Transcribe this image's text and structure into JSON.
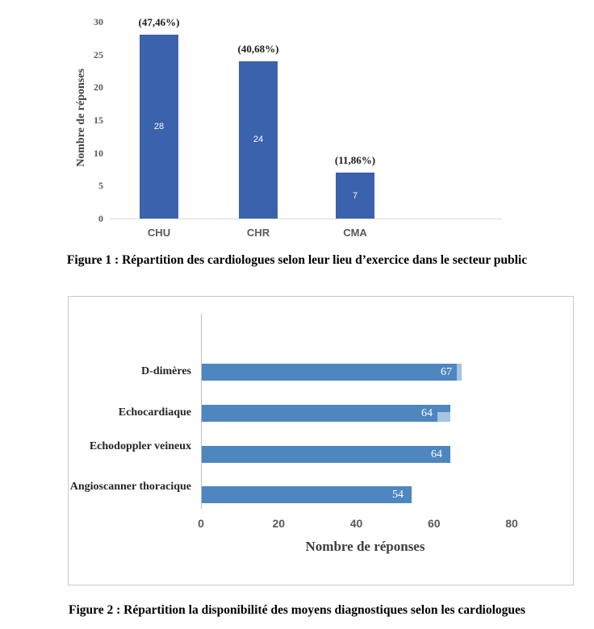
{
  "figure1": {
    "caption": "Figure 1 : Répartition des cardiologues selon leur lieu d’exercice dans le secteur public"
  },
  "figure2": {
    "caption": "Figure 2 : Répartition la disponibilité des moyens diagnostiques selon les cardiologues"
  },
  "chart_data": [
    {
      "type": "bar",
      "orientation": "vertical",
      "categories": [
        "CHU",
        "CHR",
        "CMA"
      ],
      "values": [
        28,
        24,
        7
      ],
      "percent_labels": [
        "(47,46%)",
        "(40,68%)",
        "(11,86%)"
      ],
      "ylabel": "Nombre de réponses",
      "ylim": [
        0,
        30
      ],
      "yticks": [
        0,
        5,
        10,
        15,
        20,
        25,
        30
      ],
      "grid": false,
      "legend": "none",
      "bar_color": "#3b62ac",
      "value_label_color": "#ffffff",
      "tick_color": "#595959"
    },
    {
      "type": "bar",
      "orientation": "horizontal",
      "categories": [
        "D-dimères",
        "Echocardiaque",
        "Echodoppler veineux",
        "Angioscanner thoracique"
      ],
      "values": [
        67,
        64,
        64,
        54
      ],
      "xlabel": "Nombre de réponses",
      "xlim": [
        0,
        80
      ],
      "xticks": [
        0,
        20,
        40,
        60,
        80
      ],
      "grid": false,
      "legend": "none",
      "bar_color": "#4e86c0",
      "bar_tip_color": "#a6c4e3",
      "value_label_color": "#ffffff",
      "tick_color": "#595959"
    }
  ]
}
